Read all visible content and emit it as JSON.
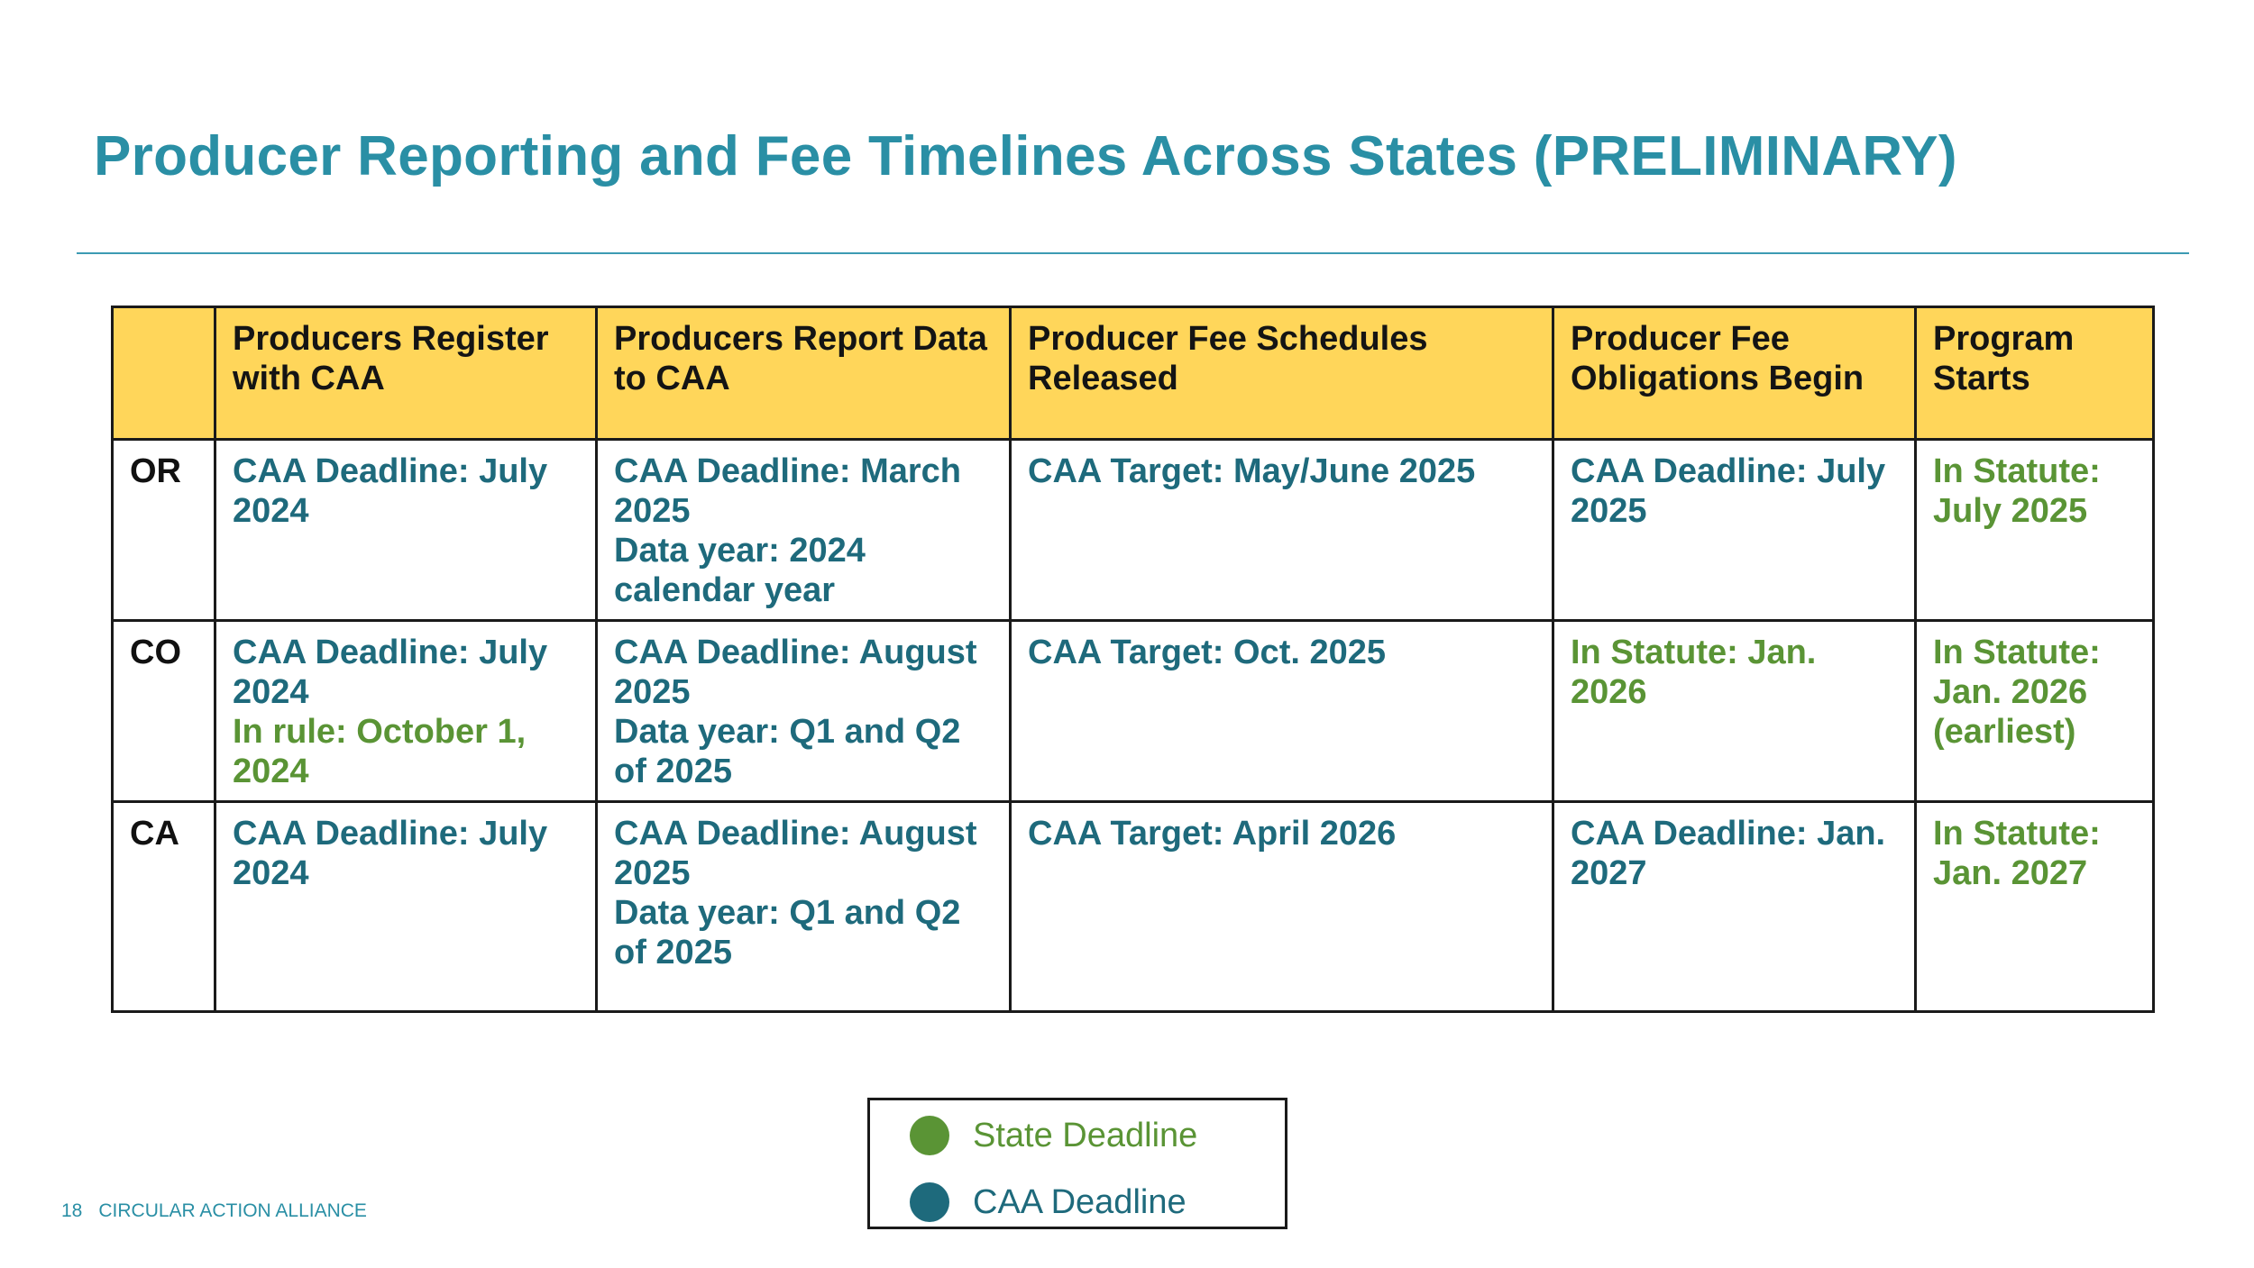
{
  "title": "Producer Reporting and Fee Timelines Across States (PRELIMINARY)",
  "colors": {
    "state_deadline": "#5a9435",
    "caa_deadline": "#1e6a7c",
    "header_fill": "#ffd65a",
    "title": "#2a8fa5"
  },
  "table": {
    "headers": [
      "",
      "Producers Register with CAA",
      "Producers Report Data to CAA",
      "Producer Fee Schedules Released",
      "Producer Fee Obligations Begin",
      "Program Starts"
    ],
    "rows": [
      {
        "state": "OR",
        "cells": [
          [
            {
              "text": "CAA Deadline: July 2024",
              "kind": "caa"
            }
          ],
          [
            {
              "text": "CAA Deadline: March 2025",
              "kind": "caa"
            },
            {
              "text": "Data year: 2024 calendar year",
              "kind": "caa"
            }
          ],
          [
            {
              "text": "CAA Target: May/June 2025",
              "kind": "caa"
            }
          ],
          [
            {
              "text": "CAA Deadline: July 2025",
              "kind": "caa"
            }
          ],
          [
            {
              "text": "In Statute: July 2025",
              "kind": "state"
            }
          ]
        ]
      },
      {
        "state": "CO",
        "cells": [
          [
            {
              "text": "CAA Deadline: July 2024",
              "kind": "caa"
            },
            {
              "text": "In rule: October 1, 2024",
              "kind": "state"
            }
          ],
          [
            {
              "text": "CAA Deadline: August 2025",
              "kind": "caa"
            },
            {
              "text": "Data year: Q1 and Q2 of 2025",
              "kind": "caa"
            }
          ],
          [
            {
              "text": "CAA Target: Oct. 2025",
              "kind": "caa"
            }
          ],
          [
            {
              "text": "In Statute: Jan. 2026",
              "kind": "state"
            }
          ],
          [
            {
              "text": "In Statute: Jan. 2026 (earliest)",
              "kind": "state"
            }
          ]
        ]
      },
      {
        "state": "CA",
        "cells": [
          [
            {
              "text": "CAA Deadline: July 2024",
              "kind": "caa"
            }
          ],
          [
            {
              "text": "CAA Deadline: August 2025",
              "kind": "caa"
            },
            {
              "text": "Data year: Q1 and Q2 of 2025",
              "kind": "caa"
            }
          ],
          [
            {
              "text": "CAA Target: April 2026",
              "kind": "caa"
            }
          ],
          [
            {
              "text": "CAA Deadline: Jan. 2027",
              "kind": "caa"
            }
          ],
          [
            {
              "text": "In Statute: Jan. 2027",
              "kind": "state"
            }
          ]
        ]
      }
    ]
  },
  "legend": {
    "state_label": "State Deadline",
    "caa_label": "CAA Deadline"
  },
  "footer": {
    "page_number": "18",
    "org": "CIRCULAR ACTION ALLIANCE"
  }
}
